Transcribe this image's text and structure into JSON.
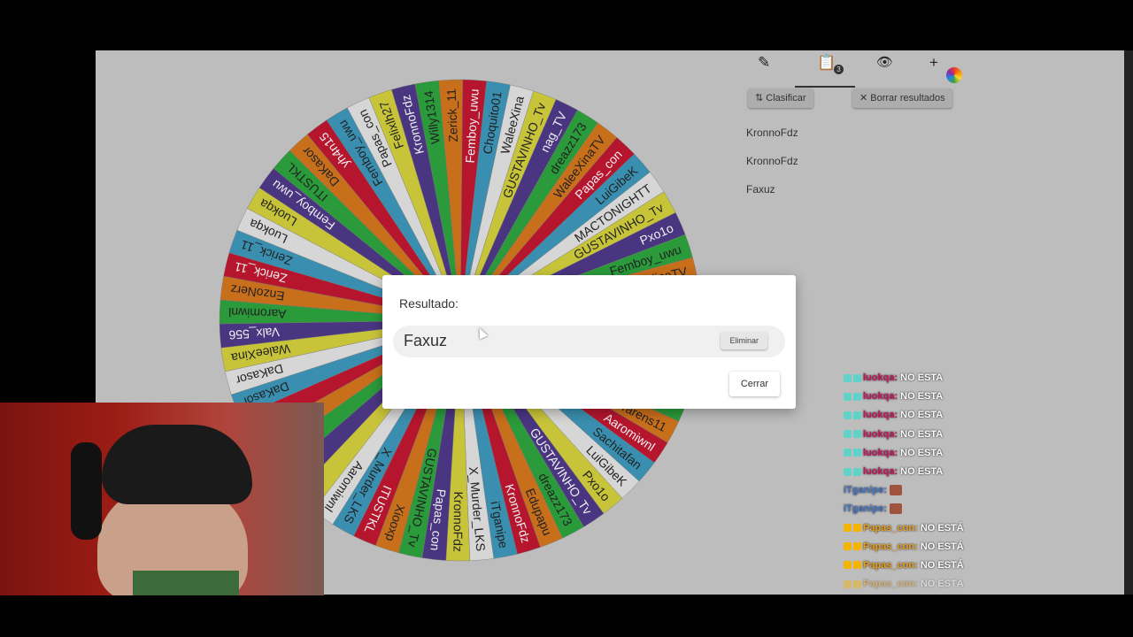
{
  "wheel": {
    "colors": [
      "#2a9a3a",
      "#c86f1b",
      "#b5162e",
      "#3a8fb0",
      "#d6d6d6",
      "#c8c43a",
      "#4a3580"
    ],
    "segments": [
      "Aaromiwnl",
      "EnzoNerz",
      "Zerick_11",
      "Zerick_11",
      "Luokqa",
      "Luokqa",
      "Femboy_uwu",
      "ITUSTKL",
      "DaKasor",
      "yh4n15",
      "Femboy_uwu",
      "Papas_con",
      "Felixlh27",
      "KronnoFdz",
      "Willy1314",
      "Zerick_11",
      "Femboy_uwu",
      "Choquito01",
      "WaleeXina",
      "GUSTAVINHO_Tv",
      "nag_TV",
      "dreazz173",
      "WaleeXinaTV",
      "Papas_con",
      "LuiGibeK",
      "MACTONIGHTT",
      "GUSTAVINHO_Tv",
      "Pxo1o",
      "Femboy_uwu",
      "WaleeXinaTV",
      "",
      "",
      "",
      "",
      "",
      "",
      "Tarens11",
      "Aaromiwnl",
      "Sachitafan",
      "LuiGibeK",
      "Pxo1o",
      "GUSTAVINHO_Tv",
      "dreazz173",
      "Edupapu",
      "KronnoFdz",
      "iTganipe",
      "X_Murder_LKS",
      "KronnoFdz",
      "Papas_con",
      "GUSTAVINHO_Tv",
      "Xiooxp",
      "ITUSTKL",
      "X_Murder_LKS",
      "Aaromiwnl",
      "",
      "",
      "",
      "",
      "",
      "DaKasor",
      "DaKasor",
      "WaleeXina",
      "Valx_556"
    ]
  },
  "toolbar": {
    "edit_icon": "pencil-icon",
    "results_icon": "clipboard-list-icon",
    "results_count": "3",
    "hide_icon": "eye-slash-icon",
    "add_icon": "plus-icon",
    "theme_icon": "color-wheel-icon",
    "sort_label": "Clasificar",
    "clear_label": "Borrar resultados"
  },
  "results": [
    "KronnoFdz",
    "KronnoFdz",
    "Faxuz"
  ],
  "modal": {
    "title": "Resultado:",
    "winner": "Faxuz",
    "remove_label": "Eliminar",
    "close_label": "Cerrar"
  },
  "chat": [
    {
      "user": "luokqa",
      "msg": "NO ESTA",
      "color": "#c2185b",
      "badge": "#5fd3c9"
    },
    {
      "user": "luokqa",
      "msg": "NO ESTA",
      "color": "#c2185b",
      "badge": "#5fd3c9"
    },
    {
      "user": "luokqa",
      "msg": "NO ESTA",
      "color": "#c2185b",
      "badge": "#5fd3c9"
    },
    {
      "user": "luokqa",
      "msg": "NO ESTA",
      "color": "#c2185b",
      "badge": "#5fd3c9"
    },
    {
      "user": "luokqa",
      "msg": "NO ESTA",
      "color": "#c2185b",
      "badge": "#5fd3c9"
    },
    {
      "user": "luokqa",
      "msg": "NO ESTA",
      "color": "#c2185b",
      "badge": "#5fd3c9"
    },
    {
      "user": "iTganipe",
      "msg": "",
      "color": "#4a78c8",
      "badge": ""
    },
    {
      "user": "iTganipe",
      "msg": "",
      "color": "#4a78c8",
      "badge": ""
    },
    {
      "user": "Papas_con",
      "msg": "NO ESTÁ",
      "color": "#e8a020",
      "badge": "#f5b400"
    },
    {
      "user": "Papas_con",
      "msg": "NO ESTÁ",
      "color": "#e8a020",
      "badge": "#f5b400"
    },
    {
      "user": "Papas_con",
      "msg": "NO ESTÁ",
      "color": "#e8a020",
      "badge": "#f5b400"
    },
    {
      "user": "Papas_con",
      "msg": "NO ESTÁ",
      "color": "#e8a020",
      "badge": "#f5b400"
    }
  ]
}
